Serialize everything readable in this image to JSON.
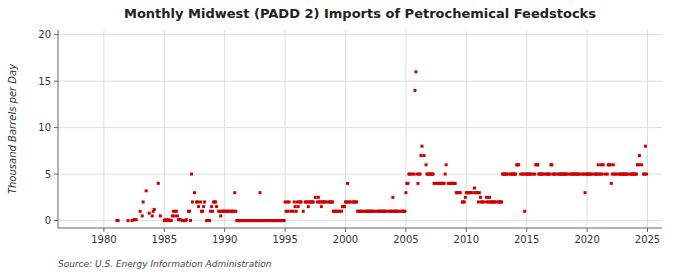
{
  "chart_data": {
    "type": "scatter",
    "title": "Monthly Midwest (PADD 2) Imports of Petrochemical Feedstocks",
    "ylabel": "Thousand Barrels per Day",
    "annotations": [
      "Source: U.S. Energy Information Administration"
    ],
    "color": "#cc0000",
    "marker": "square",
    "grid": true,
    "xlim": [
      1976.2,
      2026.2
    ],
    "ylim": [
      -0.8,
      20.5
    ],
    "xticks": [
      1980,
      1985,
      1990,
      1995,
      2000,
      2005,
      2010,
      2015,
      2020,
      2025
    ],
    "yticks": [
      0,
      5,
      10,
      15,
      20
    ],
    "x": [
      1981.08,
      1981.17,
      1982.0,
      1982.33,
      1982.5,
      1982.67,
      1983.0,
      1983.17,
      1983.25,
      1983.5,
      1983.75,
      1984.0,
      1984.08,
      1984.17,
      1984.5,
      1984.67,
      1985.0,
      1985.08,
      1985.17,
      1985.25,
      1985.33,
      1985.5,
      1985.58,
      1985.67,
      1985.75,
      1985.83,
      1985.92,
      1986.0,
      1986.08,
      1986.17,
      1986.25,
      1986.33,
      1986.5,
      1986.58,
      1986.67,
      1986.75,
      1986.83,
      1987.0,
      1987.08,
      1987.17,
      1987.25,
      1987.33,
      1987.5,
      1987.67,
      1987.75,
      1987.83,
      1988.0,
      1988.08,
      1988.17,
      1988.25,
      1988.33,
      1988.5,
      1988.67,
      1988.75,
      1988.83,
      1988.92,
      1989.0,
      1989.08,
      1989.17,
      1989.25,
      1989.33,
      1989.5,
      1989.58,
      1989.67,
      1989.75,
      1989.83,
      1989.92,
      1990.0,
      1990.08,
      1990.17,
      1990.25,
      1990.33,
      1990.5,
      1990.58,
      1990.67,
      1990.75,
      1990.83,
      1990.92,
      1991.0,
      1991.08,
      1991.17,
      1991.25,
      1991.33,
      1991.5,
      1991.58,
      1991.67,
      1991.75,
      1991.83,
      1991.92,
      1992.0,
      1992.08,
      1992.17,
      1992.25,
      1992.33,
      1992.5,
      1992.58,
      1992.67,
      1992.75,
      1992.83,
      1992.92,
      1993.0,
      1993.08,
      1993.17,
      1993.25,
      1993.33,
      1993.5,
      1993.58,
      1993.67,
      1993.75,
      1993.83,
      1993.92,
      1994.0,
      1994.08,
      1994.17,
      1994.25,
      1994.33,
      1994.5,
      1994.58,
      1994.67,
      1994.75,
      1994.83,
      1994.92,
      1995.0,
      1995.08,
      1995.17,
      1995.25,
      1995.33,
      1995.5,
      1995.67,
      1995.75,
      1995.83,
      1995.92,
      1996.0,
      1996.08,
      1996.17,
      1996.25,
      1996.33,
      1996.5,
      1996.67,
      1996.75,
      1996.83,
      1996.92,
      1997.0,
      1997.08,
      1997.17,
      1997.25,
      1997.33,
      1997.5,
      1997.67,
      1997.75,
      1997.83,
      1997.92,
      1998.0,
      1998.08,
      1998.17,
      1998.25,
      1998.33,
      1998.5,
      1998.67,
      1998.75,
      1998.83,
      1998.92,
      1999.0,
      1999.08,
      1999.17,
      1999.25,
      1999.33,
      1999.5,
      1999.67,
      1999.75,
      1999.83,
      1999.92,
      2000.0,
      2000.08,
      2000.17,
      2000.25,
      2000.33,
      2000.5,
      2000.67,
      2000.75,
      2000.83,
      2000.92,
      2001.0,
      2001.08,
      2001.17,
      2001.25,
      2001.33,
      2001.5,
      2001.67,
      2001.75,
      2001.83,
      2001.92,
      2002.0,
      2002.08,
      2002.17,
      2002.25,
      2002.33,
      2002.5,
      2002.67,
      2002.75,
      2002.83,
      2002.92,
      2003.0,
      2003.08,
      2003.17,
      2003.25,
      2003.33,
      2003.5,
      2003.67,
      2003.75,
      2003.83,
      2003.92,
      2004.0,
      2004.08,
      2004.17,
      2004.25,
      2004.33,
      2004.5,
      2004.67,
      2004.75,
      2004.83,
      2004.92,
      2005.0,
      2005.08,
      2005.17,
      2005.25,
      2005.33,
      2005.5,
      2005.67,
      2005.75,
      2005.83,
      2005.92,
      2006.0,
      2006.08,
      2006.17,
      2006.25,
      2006.33,
      2006.5,
      2006.67,
      2006.75,
      2006.83,
      2006.92,
      2007.0,
      2007.08,
      2007.17,
      2007.25,
      2007.33,
      2007.5,
      2007.67,
      2007.75,
      2007.83,
      2007.92,
      2008.0,
      2008.08,
      2008.17,
      2008.25,
      2008.33,
      2008.5,
      2008.67,
      2008.75,
      2008.83,
      2008.92,
      2009.0,
      2009.08,
      2009.17,
      2009.25,
      2009.33,
      2009.5,
      2009.67,
      2009.75,
      2009.83,
      2009.92,
      2010.0,
      2010.08,
      2010.17,
      2010.25,
      2010.33,
      2010.5,
      2010.67,
      2010.75,
      2010.83,
      2010.92,
      2011.0,
      2011.08,
      2011.17,
      2011.25,
      2011.33,
      2011.5,
      2011.67,
      2011.75,
      2011.83,
      2011.92,
      2012.0,
      2012.08,
      2012.17,
      2012.25,
      2012.33,
      2012.5,
      2012.67,
      2012.75,
      2012.83,
      2012.92,
      2013.0,
      2013.08,
      2013.17,
      2013.25,
      2013.33,
      2013.5,
      2013.67,
      2013.75,
      2013.83,
      2013.92,
      2014.0,
      2014.08,
      2014.17,
      2014.25,
      2014.33,
      2014.5,
      2014.67,
      2014.75,
      2014.83,
      2014.92,
      2015.0,
      2015.08,
      2015.17,
      2015.25,
      2015.33,
      2015.5,
      2015.67,
      2015.75,
      2015.83,
      2015.92,
      2016.0,
      2016.08,
      2016.17,
      2016.25,
      2016.33,
      2016.5,
      2016.67,
      2016.75,
      2016.83,
      2016.92,
      2017.0,
      2017.08,
      2017.17,
      2017.25,
      2017.33,
      2017.5,
      2017.67,
      2017.75,
      2017.83,
      2017.92,
      2018.0,
      2018.08,
      2018.17,
      2018.25,
      2018.33,
      2018.5,
      2018.67,
      2018.75,
      2018.83,
      2018.92,
      2019.0,
      2019.08,
      2019.17,
      2019.25,
      2019.33,
      2019.5,
      2019.67,
      2019.75,
      2019.83,
      2019.92,
      2020.0,
      2020.08,
      2020.17,
      2020.25,
      2020.33,
      2020.5,
      2020.67,
      2020.75,
      2020.83,
      2020.92,
      2021.0,
      2021.08,
      2021.17,
      2021.25,
      2021.33,
      2021.5,
      2021.67,
      2021.75,
      2021.83,
      2021.92,
      2022.0,
      2022.08,
      2022.17,
      2022.25,
      2022.33,
      2022.5,
      2022.67,
      2022.75,
      2022.83,
      2022.92,
      2023.0,
      2023.08,
      2023.17,
      2023.25,
      2023.33,
      2023.5,
      2023.67,
      2023.75,
      2023.83,
      2023.92,
      2024.0,
      2024.08,
      2024.17,
      2024.25,
      2024.33,
      2024.5,
      2024.67,
      2024.75,
      2024.83,
      2024.92
    ],
    "values": [
      0.0,
      0.0,
      0.0,
      0.0,
      0.1,
      0.1,
      1.0,
      0.5,
      2.0,
      3.2,
      0.8,
      0.5,
      1.0,
      1.2,
      4.0,
      0.5,
      0.0,
      0.1,
      0.0,
      0.0,
      0.1,
      0.0,
      0.0,
      0.5,
      1.0,
      0.5,
      1.0,
      1.0,
      0.5,
      0.1,
      0.1,
      0.1,
      0.0,
      0.0,
      0.0,
      0.0,
      0.1,
      1.0,
      1.0,
      0.0,
      5.0,
      2.0,
      3.0,
      2.0,
      2.0,
      1.5,
      2.0,
      1.0,
      1.0,
      1.5,
      2.0,
      0.0,
      0.0,
      0.0,
      1.0,
      1.5,
      1.0,
      2.0,
      2.0,
      2.0,
      1.5,
      1.0,
      1.0,
      0.5,
      1.0,
      1.0,
      1.0,
      1.0,
      1.0,
      1.0,
      1.0,
      1.0,
      1.0,
      1.0,
      1.0,
      1.0,
      3.0,
      1.0,
      0.0,
      0.0,
      0.0,
      0.0,
      0.0,
      0.0,
      0.0,
      0.0,
      0.0,
      0.0,
      0.0,
      0.0,
      0.0,
      0.0,
      0.0,
      0.0,
      0.0,
      0.0,
      0.0,
      0.0,
      0.0,
      3.0,
      0.0,
      0.0,
      0.0,
      0.0,
      0.0,
      0.0,
      0.0,
      0.0,
      0.0,
      0.0,
      0.0,
      0.0,
      0.0,
      0.0,
      0.0,
      0.0,
      0.0,
      0.0,
      0.0,
      0.0,
      0.0,
      0.0,
      2.0,
      1.0,
      2.0,
      1.0,
      2.0,
      1.0,
      1.0,
      2.0,
      1.5,
      1.0,
      2.0,
      1.5,
      2.0,
      2.0,
      2.0,
      1.0,
      2.0,
      2.0,
      2.0,
      1.5,
      2.0,
      2.0,
      2.0,
      2.0,
      2.0,
      2.5,
      2.0,
      2.5,
      2.0,
      2.0,
      1.5,
      2.0,
      2.0,
      2.0,
      2.0,
      2.0,
      2.0,
      2.0,
      2.0,
      2.0,
      1.0,
      1.0,
      1.0,
      1.0,
      1.0,
      1.0,
      1.0,
      1.5,
      1.5,
      1.5,
      2.0,
      2.0,
      4.0,
      2.0,
      2.0,
      2.0,
      2.0,
      2.0,
      2.0,
      2.0,
      1.0,
      1.0,
      1.0,
      1.0,
      1.0,
      1.0,
      1.0,
      1.0,
      1.0,
      1.0,
      1.0,
      1.0,
      1.0,
      1.0,
      1.0,
      1.0,
      1.0,
      1.0,
      1.0,
      1.0,
      1.0,
      1.0,
      1.0,
      1.0,
      1.0,
      1.0,
      1.0,
      1.0,
      1.0,
      2.5,
      1.0,
      1.0,
      1.0,
      1.0,
      1.0,
      1.0,
      1.0,
      1.0,
      1.0,
      1.0,
      3.0,
      4.0,
      4.0,
      5.0,
      5.0,
      5.0,
      5.0,
      14.0,
      16.0,
      5.0,
      4.0,
      5.0,
      5.0,
      7.0,
      8.0,
      7.0,
      6.0,
      5.0,
      5.0,
      5.0,
      5.0,
      5.0,
      5.0,
      5.0,
      4.0,
      4.0,
      4.0,
      4.0,
      4.0,
      4.0,
      4.0,
      4.0,
      4.0,
      5.0,
      6.0,
      4.0,
      4.0,
      4.0,
      4.0,
      4.0,
      4.0,
      4.0,
      3.0,
      3.0,
      3.0,
      3.0,
      2.0,
      2.0,
      2.0,
      2.5,
      3.0,
      3.0,
      3.0,
      3.0,
      3.0,
      3.0,
      3.5,
      3.0,
      3.0,
      3.0,
      2.0,
      3.0,
      2.5,
      2.0,
      2.0,
      2.0,
      2.5,
      2.0,
      2.0,
      2.5,
      2.0,
      2.0,
      2.0,
      2.0,
      2.0,
      2.0,
      2.0,
      2.0,
      2.0,
      2.0,
      5.0,
      5.0,
      5.0,
      5.0,
      5.0,
      5.0,
      5.0,
      5.0,
      5.0,
      5.0,
      5.0,
      5.0,
      6.0,
      6.0,
      6.0,
      5.0,
      5.0,
      5.0,
      1.0,
      5.0,
      5.0,
      5.0,
      5.0,
      5.0,
      5.0,
      5.0,
      5.0,
      6.0,
      6.0,
      6.0,
      5.0,
      5.0,
      5.0,
      5.0,
      5.0,
      5.0,
      5.0,
      5.0,
      5.0,
      5.0,
      6.0,
      6.0,
      5.0,
      5.0,
      5.0,
      5.0,
      5.0,
      5.0,
      5.0,
      5.0,
      5.0,
      5.0,
      5.0,
      5.0,
      5.0,
      5.0,
      5.0,
      5.0,
      5.0,
      5.0,
      5.0,
      5.0,
      5.0,
      5.0,
      5.0,
      5.0,
      5.0,
      5.0,
      3.0,
      5.0,
      5.0,
      5.0,
      5.0,
      5.0,
      5.0,
      5.0,
      5.0,
      5.0,
      5.0,
      6.0,
      5.0,
      5.0,
      6.0,
      5.0,
      6.0,
      5.0,
      5.0,
      6.0,
      6.0,
      6.0,
      4.0,
      5.0,
      6.0,
      5.0,
      5.0,
      5.0,
      5.0,
      5.0,
      5.0,
      5.0,
      5.0,
      5.0,
      5.0,
      5.0,
      5.0,
      5.0,
      5.0,
      5.0,
      5.0,
      5.0,
      5.0,
      5.0,
      6.0,
      6.0,
      7.0,
      6.0,
      5.0,
      5.0,
      8.0,
      5.0
    ]
  }
}
